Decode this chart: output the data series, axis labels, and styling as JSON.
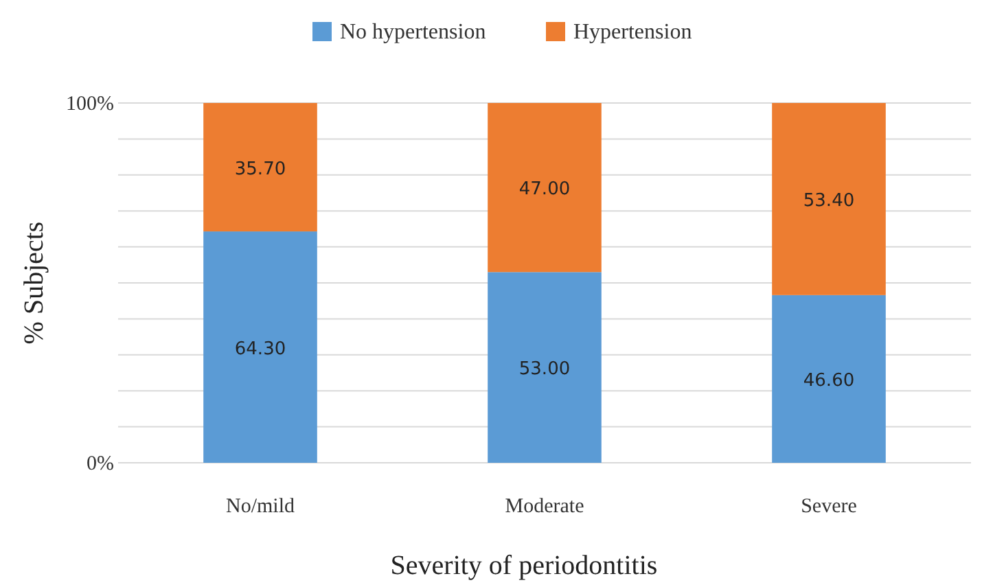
{
  "chart_data": {
    "type": "bar",
    "stacked": true,
    "xlabel": "Severity of periodontitis",
    "ylabel": "% Subjects",
    "categories": [
      "No/mild",
      "Moderate",
      "Severe"
    ],
    "series": [
      {
        "name": "No hypertension",
        "color": "#5b9bd5",
        "values": [
          64.3,
          53,
          46.6
        ],
        "value_labels": [
          "64.30",
          "53.00",
          "46.60"
        ]
      },
      {
        "name": "Hypertension",
        "color": "#ed7d31",
        "values": [
          35.7,
          47,
          53.4
        ],
        "value_labels": [
          "35.70",
          "47.00",
          "53.40"
        ]
      }
    ],
    "ylim": [
      0,
      100
    ],
    "yticks": [
      {
        "value": 0,
        "label": "0%"
      },
      {
        "value": 10,
        "label": null
      },
      {
        "value": 20,
        "label": null
      },
      {
        "value": 30,
        "label": null
      },
      {
        "value": 40,
        "label": null
      },
      {
        "value": 50,
        "label": null
      },
      {
        "value": 60,
        "label": null
      },
      {
        "value": 70,
        "label": null
      },
      {
        "value": 80,
        "label": null
      },
      {
        "value": 90,
        "label": null
      },
      {
        "value": 100,
        "label": "100%"
      }
    ],
    "grid": "y",
    "legend": "top"
  }
}
